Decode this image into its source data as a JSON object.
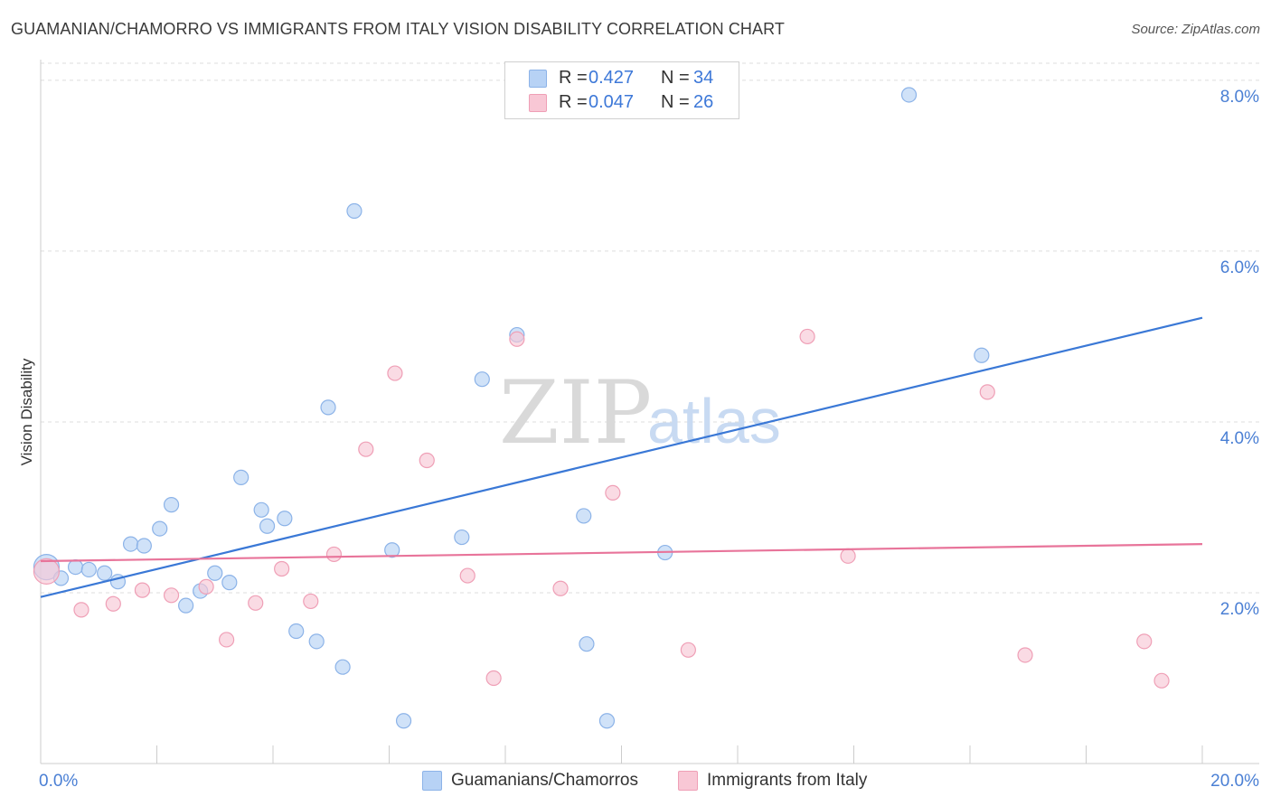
{
  "title": "GUAMANIAN/CHAMORRO VS IMMIGRANTS FROM ITALY VISION DISABILITY CORRELATION CHART",
  "source": "Source: ZipAtlas.com",
  "watermark": {
    "zip": "ZIP",
    "atlas": "atlas"
  },
  "colors": {
    "blue_fill": "#b7d2f5",
    "blue_stroke": "#8cb3e8",
    "blue_line": "#3a78d6",
    "pink_fill": "#f8c7d5",
    "pink_stroke": "#ef9fb6",
    "pink_line": "#e8749a",
    "tick_text": "#4a7fd4",
    "grid": "#dddddd"
  },
  "legend": {
    "rows": [
      {
        "r_label": "R =",
        "r_value": "0.427",
        "n_label": "N =",
        "n_value": "34",
        "color": "#b7d2f5",
        "border": "#8cb3e8"
      },
      {
        "r_label": "R =",
        "r_value": "0.047",
        "n_label": "N =",
        "n_value": "26",
        "color": "#f8c7d5",
        "border": "#ef9fb6"
      }
    ]
  },
  "bottom_legend": [
    {
      "label": "Guamanians/Chamorros",
      "color": "#b7d2f5",
      "border": "#8cb3e8"
    },
    {
      "label": "Immigrants from Italy",
      "color": "#f8c7d5",
      "border": "#ef9fb6"
    }
  ],
  "chart_data": {
    "type": "scatter",
    "title": "GUAMANIAN/CHAMORRO VS IMMIGRANTS FROM ITALY VISION DISABILITY CORRELATION CHART",
    "xlabel": "",
    "ylabel": "Vision Disability",
    "xlim": [
      0,
      20
    ],
    "ylim": [
      0,
      8.2
    ],
    "x_tick_labels": [
      {
        "value": 0,
        "label": "0.0%"
      },
      {
        "value": 20,
        "label": "20.0%"
      }
    ],
    "y_tick_labels": [
      {
        "value": 2,
        "label": "2.0%"
      },
      {
        "value": 4,
        "label": "4.0%"
      },
      {
        "value": 6,
        "label": "6.0%"
      },
      {
        "value": 8,
        "label": "8.0%"
      }
    ],
    "series": [
      {
        "name": "Guamanians/Chamorros",
        "color": "#b7d2f5",
        "points": [
          {
            "x": 0.1,
            "y": 2.3,
            "large": true
          },
          {
            "x": 0.35,
            "y": 2.17
          },
          {
            "x": 0.6,
            "y": 2.3
          },
          {
            "x": 0.83,
            "y": 2.27
          },
          {
            "x": 1.1,
            "y": 2.23
          },
          {
            "x": 1.33,
            "y": 2.13
          },
          {
            "x": 1.55,
            "y": 2.57
          },
          {
            "x": 1.78,
            "y": 2.55
          },
          {
            "x": 2.05,
            "y": 2.75
          },
          {
            "x": 2.25,
            "y": 3.03
          },
          {
            "x": 2.5,
            "y": 1.85
          },
          {
            "x": 2.75,
            "y": 2.02
          },
          {
            "x": 3.0,
            "y": 2.23
          },
          {
            "x": 3.25,
            "y": 2.12
          },
          {
            "x": 3.45,
            "y": 3.35
          },
          {
            "x": 3.8,
            "y": 2.97
          },
          {
            "x": 3.9,
            "y": 2.78
          },
          {
            "x": 4.2,
            "y": 2.87
          },
          {
            "x": 4.4,
            "y": 1.55
          },
          {
            "x": 4.75,
            "y": 1.43
          },
          {
            "x": 4.95,
            "y": 4.17
          },
          {
            "x": 5.2,
            "y": 1.13
          },
          {
            "x": 5.4,
            "y": 6.47
          },
          {
            "x": 6.05,
            "y": 2.5
          },
          {
            "x": 6.25,
            "y": 0.5
          },
          {
            "x": 7.25,
            "y": 2.65
          },
          {
            "x": 7.6,
            "y": 4.5
          },
          {
            "x": 8.2,
            "y": 5.02
          },
          {
            "x": 9.35,
            "y": 2.9
          },
          {
            "x": 9.4,
            "y": 1.4
          },
          {
            "x": 9.75,
            "y": 0.5
          },
          {
            "x": 10.75,
            "y": 2.47
          },
          {
            "x": 14.95,
            "y": 7.83
          },
          {
            "x": 16.2,
            "y": 4.78
          }
        ]
      },
      {
        "name": "Immigrants from Italy",
        "color": "#f8c7d5",
        "points": [
          {
            "x": 0.1,
            "y": 2.25,
            "large": true
          },
          {
            "x": 0.7,
            "y": 1.8
          },
          {
            "x": 1.25,
            "y": 1.87
          },
          {
            "x": 1.75,
            "y": 2.03
          },
          {
            "x": 2.25,
            "y": 1.97
          },
          {
            "x": 2.85,
            "y": 2.07
          },
          {
            "x": 3.2,
            "y": 1.45
          },
          {
            "x": 3.7,
            "y": 1.88
          },
          {
            "x": 4.15,
            "y": 2.28
          },
          {
            "x": 4.65,
            "y": 1.9
          },
          {
            "x": 5.05,
            "y": 2.45
          },
          {
            "x": 5.6,
            "y": 3.68
          },
          {
            "x": 6.1,
            "y": 4.57
          },
          {
            "x": 6.65,
            "y": 3.55
          },
          {
            "x": 7.35,
            "y": 2.2
          },
          {
            "x": 7.8,
            "y": 1.0
          },
          {
            "x": 8.2,
            "y": 4.97
          },
          {
            "x": 8.95,
            "y": 2.05
          },
          {
            "x": 9.85,
            "y": 3.17
          },
          {
            "x": 11.15,
            "y": 1.33
          },
          {
            "x": 13.2,
            "y": 5.0
          },
          {
            "x": 13.9,
            "y": 2.43
          },
          {
            "x": 16.3,
            "y": 4.35
          },
          {
            "x": 16.95,
            "y": 1.27
          },
          {
            "x": 19.0,
            "y": 1.43
          },
          {
            "x": 19.3,
            "y": 0.97
          }
        ]
      }
    ],
    "trend_lines": [
      {
        "series": "Guamanians/Chamorros",
        "x": [
          0,
          20
        ],
        "y": [
          1.95,
          5.22
        ],
        "color": "#3a78d6"
      },
      {
        "series": "Immigrants from Italy",
        "x": [
          0,
          20
        ],
        "y": [
          2.37,
          2.57
        ],
        "color": "#e8749a"
      }
    ],
    "legend": {
      "r_values": [
        "0.427",
        "0.047"
      ],
      "n_values": [
        "34",
        "26"
      ]
    }
  }
}
